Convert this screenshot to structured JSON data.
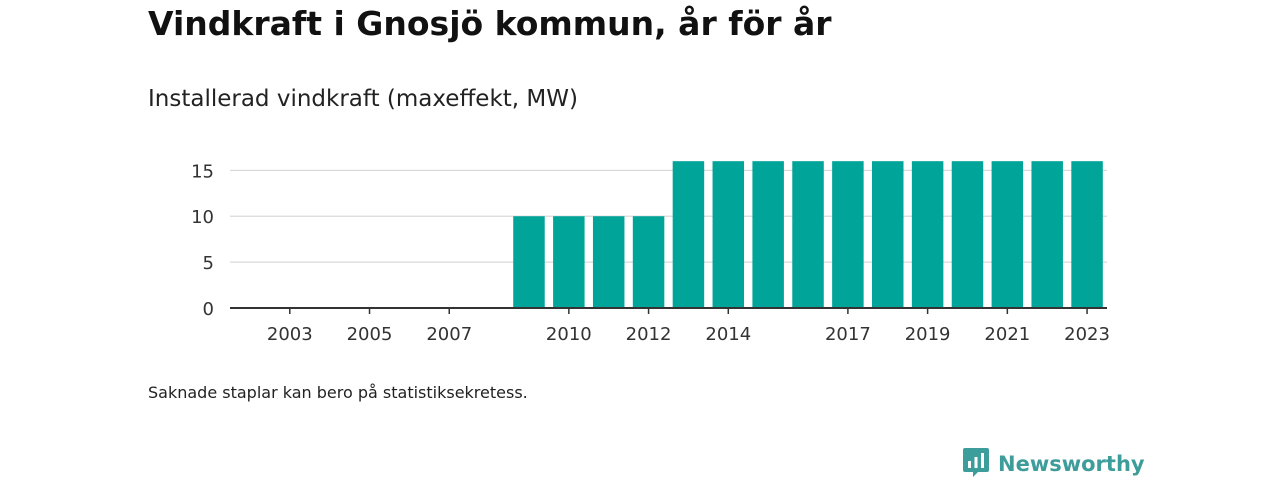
{
  "title": "Vindkraft i Gnosjö kommun, år för år",
  "subtitle": "Installerad vindkraft (maxeffekt, MW)",
  "note": "Saknade staplar kan bero på statistiksekretess.",
  "brand": {
    "name": "Newsworthy",
    "icon": "newsworthy-logo-icon",
    "color": "#3c9d9b"
  },
  "colors": {
    "bar": "#00a499",
    "grid": "#d9d9d9",
    "axis": "#333333"
  },
  "chart_data": {
    "type": "bar",
    "categories": [
      "2002",
      "2003",
      "2004",
      "2005",
      "2006",
      "2007",
      "2008",
      "2009",
      "2010",
      "2011",
      "2012",
      "2013",
      "2014",
      "2015",
      "2016",
      "2017",
      "2018",
      "2019",
      "2020",
      "2021",
      "2022",
      "2023"
    ],
    "values": [
      null,
      null,
      null,
      null,
      null,
      null,
      null,
      10,
      10,
      10,
      10,
      16,
      16,
      16,
      16,
      16,
      16,
      16,
      16,
      16,
      16,
      16
    ],
    "tick_labels_x": [
      "2003",
      "2005",
      "2007",
      "2010",
      "2012",
      "2014",
      "2017",
      "2019",
      "2021",
      "2023"
    ],
    "yticks": [
      0,
      5,
      10,
      15
    ],
    "ylim": [
      0,
      17
    ],
    "title": "Vindkraft i Gnosjö kommun, år för år",
    "subtitle": "Installerad vindkraft (maxeffekt, MW)",
    "grid": true
  }
}
